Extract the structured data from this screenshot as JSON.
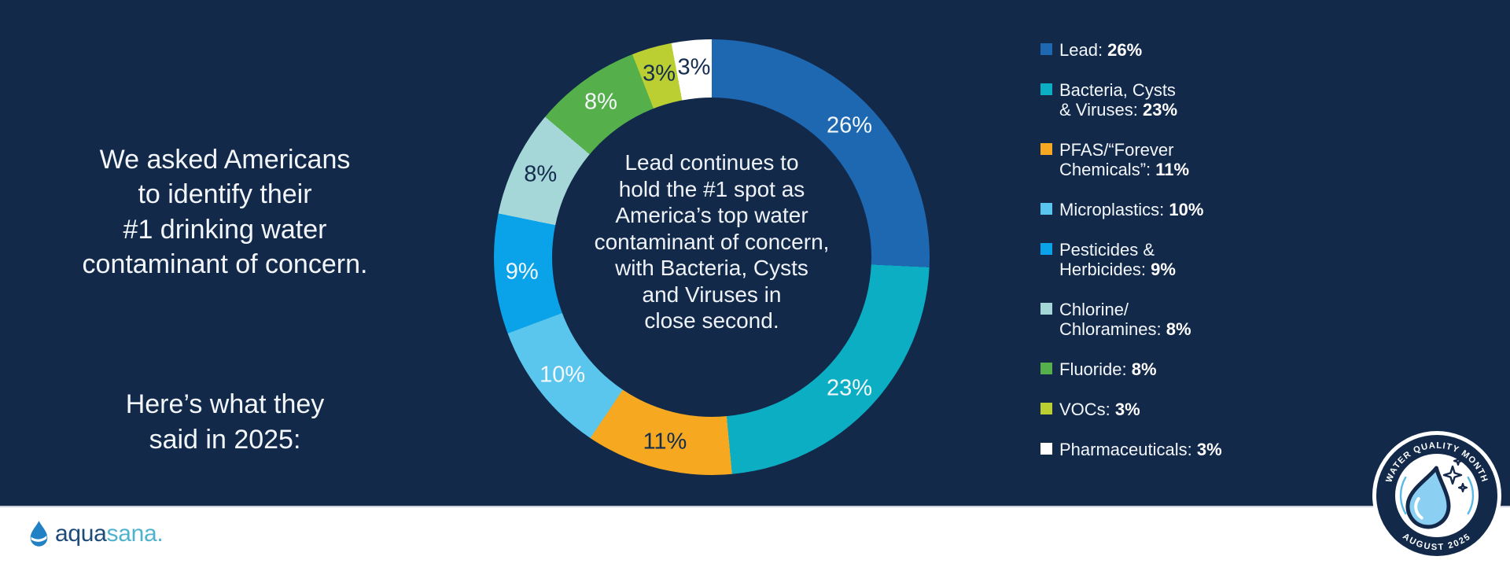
{
  "colors": {
    "background": "#12294A",
    "bottom_bar": "#FFFFFF",
    "text_light": "#F3F6FA",
    "text_dark": "#142C4E"
  },
  "left_panel": {
    "paragraph1": "We asked Americans\nto identify their\n#1 drinking water\ncontaminant of concern.",
    "paragraph2": "Here’s what they\nsaid in 2025:"
  },
  "donut": {
    "center_text": "Lead continues to\nhold the #1 spot as\nAmerica’s top water\ncontaminant of concern,\nwith Bacteria, Cysts\nand Viruses in\nclose second."
  },
  "chart_data": {
    "type": "pie",
    "donut": true,
    "title": "#1 drinking water contaminant of concern, 2025",
    "direction": "clockwise",
    "start_angle_deg": 0,
    "legend_position": "right",
    "segments": [
      {
        "name": "Lead",
        "value": 26,
        "label": "26%",
        "color": "#1E68B2",
        "label_color": "#F5F8FB"
      },
      {
        "name": "Bacteria, Cysts & Viruses",
        "value": 23,
        "label": "23%",
        "color": "#0CAEC4",
        "label_color": "#F5F8FB"
      },
      {
        "name": "PFAS/“Forever Chemicals”",
        "value": 11,
        "label": "11%",
        "color": "#F5A820",
        "label_color": "#142C4E"
      },
      {
        "name": "Microplastics",
        "value": 10,
        "label": "10%",
        "color": "#5BC6ED",
        "label_color": "#F5F8FB"
      },
      {
        "name": "Pesticides & Herbicides",
        "value": 9,
        "label": "9%",
        "color": "#0AA2E8",
        "label_color": "#F5F8FB"
      },
      {
        "name": "Chlorine/Chloramines",
        "value": 8,
        "label": "8%",
        "color": "#A6D7D8",
        "label_color": "#142C4E"
      },
      {
        "name": "Fluoride",
        "value": 8,
        "label": "8%",
        "color": "#55B04B",
        "label_color": "#F5F8FB"
      },
      {
        "name": "VOCs",
        "value": 3,
        "label": "3%",
        "color": "#BBCF33",
        "label_color": "#142C4E"
      },
      {
        "name": "Pharmaceuticals",
        "value": 3,
        "label": "3%",
        "color": "#FFFFFF",
        "label_color": "#142C4E"
      }
    ]
  },
  "legend": {
    "items": [
      {
        "name": "Lead:",
        "value": "26%",
        "color": "#1E68B2"
      },
      {
        "name": "Bacteria, Cysts\n& Viruses:",
        "value": "23%",
        "color": "#0CAEC4"
      },
      {
        "name": "PFAS/“Forever\nChemicals”:",
        "value": "11%",
        "color": "#F5A820"
      },
      {
        "name": "Microplastics:",
        "value": "10%",
        "color": "#5BC6ED"
      },
      {
        "name": "Pesticides &\nHerbicides:",
        "value": "9%",
        "color": "#0AA2E8"
      },
      {
        "name": "Chlorine/\nChloramines:",
        "value": "8%",
        "color": "#A6D7D8"
      },
      {
        "name": "Fluoride:",
        "value": "8%",
        "color": "#55B04B"
      },
      {
        "name": "VOCs:",
        "value": "3%",
        "color": "#BBCF33"
      },
      {
        "name": "Pharmaceuticals:",
        "value": "3%",
        "color": "#FFFFFF"
      }
    ]
  },
  "logo": {
    "word_primary": "aqua",
    "word_secondary": "sana",
    "mark": "."
  },
  "badge": {
    "top_text": "WATER QUALITY MONTH",
    "bottom_text": "AUGUST 2025"
  }
}
